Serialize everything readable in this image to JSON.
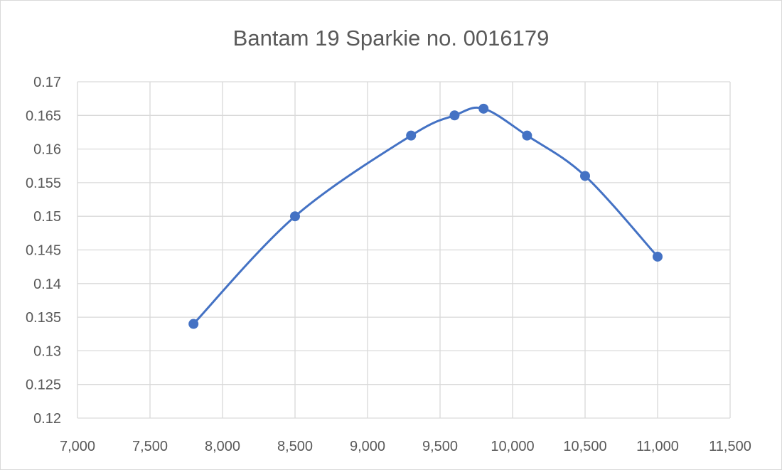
{
  "chart_data": {
    "type": "scatter",
    "title": "Bantam 19 Sparkie no. 0016179",
    "xlabel": "",
    "ylabel": "",
    "xlim": [
      7000,
      11500
    ],
    "ylim": [
      0.12,
      0.17
    ],
    "x_ticks": [
      "7,000",
      "7,500",
      "8,000",
      "8,500",
      "9,000",
      "9,500",
      "10,000",
      "10,500",
      "11,000",
      "11,500"
    ],
    "y_ticks": [
      "0.12",
      "0.125",
      "0.13",
      "0.135",
      "0.14",
      "0.145",
      "0.15",
      "0.155",
      "0.16",
      "0.165",
      "0.17"
    ],
    "grid": true,
    "legend": "none",
    "line": "smooth",
    "series": [
      {
        "color": "#4472c4",
        "points": [
          {
            "x": 7800,
            "y": 0.134
          },
          {
            "x": 8500,
            "y": 0.15
          },
          {
            "x": 9300,
            "y": 0.162
          },
          {
            "x": 9600,
            "y": 0.165
          },
          {
            "x": 9800,
            "y": 0.166
          },
          {
            "x": 10100,
            "y": 0.162
          },
          {
            "x": 10500,
            "y": 0.156
          },
          {
            "x": 11000,
            "y": 0.144
          }
        ]
      }
    ]
  }
}
